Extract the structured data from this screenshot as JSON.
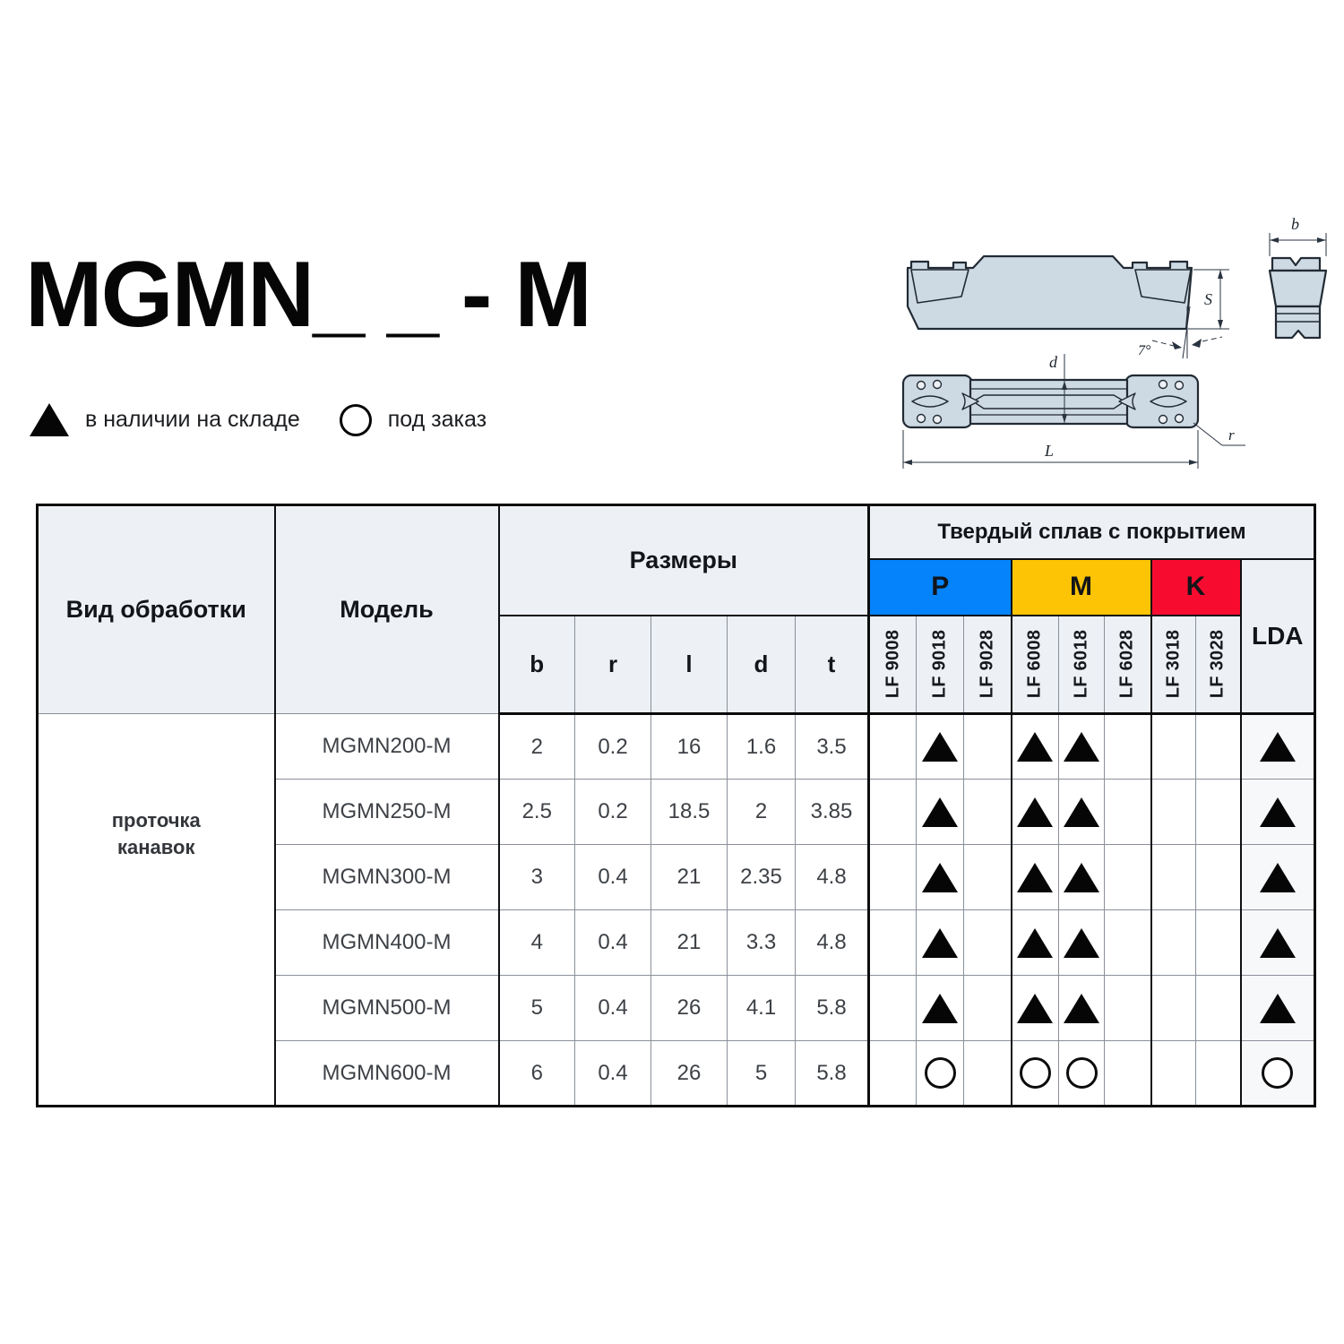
{
  "page": {
    "title": "MGMN_ _ - M",
    "legend": [
      {
        "symbol": "filled-triangle",
        "label": "в наличии на складе"
      },
      {
        "symbol": "outline-circle",
        "label": "под заказ"
      }
    ]
  },
  "drawing": {
    "labels": {
      "b": "b",
      "S": "S",
      "angle": "7°",
      "d": "d",
      "L": "L",
      "r": "r"
    },
    "fill": "#cdd9e3",
    "stroke": "#222b34"
  },
  "table": {
    "headers": {
      "processing": "Вид обработки",
      "model": "Модель",
      "dimensions": "Размеры",
      "dim_cols": [
        "b",
        "r",
        "l",
        "d",
        "t"
      ],
      "carbide": "Твердый сплав с покрытием",
      "groups": [
        {
          "label": "P",
          "color": "#0583fb",
          "grades": [
            "LF 9008",
            "LF 9018",
            "LF 9028"
          ]
        },
        {
          "label": "M",
          "color": "#fcc404",
          "grades": [
            "LF 6008",
            "LF 6018",
            "LF 6028"
          ]
        },
        {
          "label": "K",
          "color": "#f70c30",
          "grades": [
            "LF 3018",
            "LF 3028"
          ]
        },
        {
          "label": "LDA",
          "color": "",
          "grades": []
        }
      ]
    },
    "processing_type": "проточка канавок",
    "mark_legend": {
      "in-stock": "filled-triangle",
      "on-order": "outline-circle"
    },
    "rows": [
      {
        "model": "MGMN200-M",
        "dims": [
          "2",
          "0.2",
          "16",
          "1.6",
          "3.5"
        ],
        "marks": [
          "",
          "in-stock",
          "",
          "in-stock",
          "in-stock",
          "",
          "",
          "",
          "in-stock"
        ]
      },
      {
        "model": "MGMN250-M",
        "dims": [
          "2.5",
          "0.2",
          "18.5",
          "2",
          "3.85"
        ],
        "marks": [
          "",
          "in-stock",
          "",
          "in-stock",
          "in-stock",
          "",
          "",
          "",
          "in-stock"
        ]
      },
      {
        "model": "MGMN300-M",
        "dims": [
          "3",
          "0.4",
          "21",
          "2.35",
          "4.8"
        ],
        "marks": [
          "",
          "in-stock",
          "",
          "in-stock",
          "in-stock",
          "",
          "",
          "",
          "in-stock"
        ]
      },
      {
        "model": "MGMN400-M",
        "dims": [
          "4",
          "0.4",
          "21",
          "3.3",
          "4.8"
        ],
        "marks": [
          "",
          "in-stock",
          "",
          "in-stock",
          "in-stock",
          "",
          "",
          "",
          "in-stock"
        ]
      },
      {
        "model": "MGMN500-M",
        "dims": [
          "5",
          "0.4",
          "26",
          "4.1",
          "5.8"
        ],
        "marks": [
          "",
          "in-stock",
          "",
          "in-stock",
          "in-stock",
          "",
          "",
          "",
          "in-stock"
        ]
      },
      {
        "model": "MGMN600-M",
        "dims": [
          "6",
          "0.4",
          "26",
          "5",
          "5.8"
        ],
        "marks": [
          "",
          "on-order",
          "",
          "on-order",
          "on-order",
          "",
          "",
          "",
          "on-order"
        ]
      }
    ]
  }
}
